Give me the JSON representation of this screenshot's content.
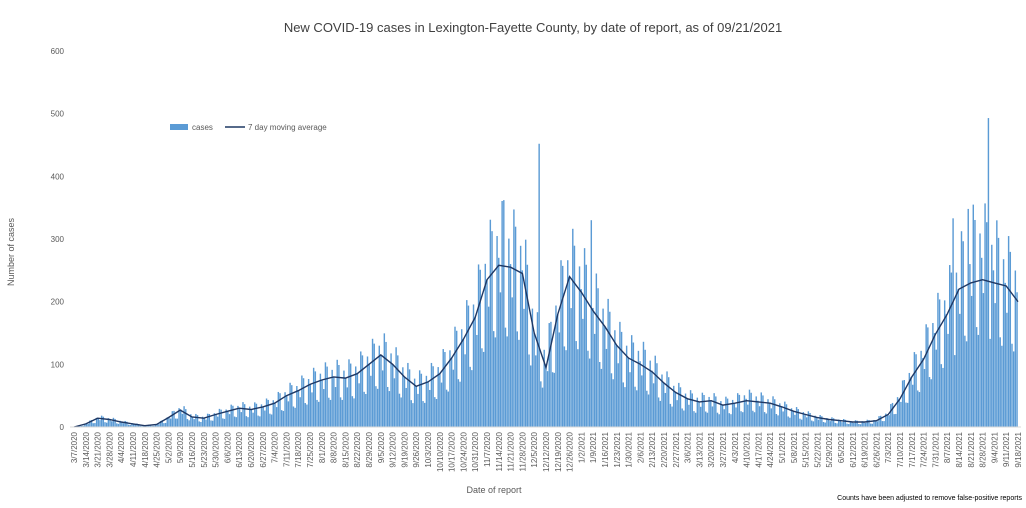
{
  "chart_data": {
    "type": "bar",
    "title": "New COVID-19 cases in Lexington-Fayette County, by date of report, as of 09/21/2021",
    "xlabel": "Date of report",
    "ylabel": "Number of cases",
    "ylim": [
      0,
      600
    ],
    "yticks": [
      "0",
      "100",
      "200",
      "300",
      "400",
      "500",
      "600"
    ],
    "grid": false,
    "legend": {
      "placement": "top-left",
      "entries": [
        {
          "name": "cases",
          "kind": "bar",
          "color": "#5b9bd5"
        },
        {
          "name": "7 day moving average",
          "kind": "line",
          "color": "#1f3864"
        }
      ]
    },
    "footnote": "Counts have been adjusted to remove false-positive reports",
    "x_start": "3/7/2020",
    "x_end": "9/18/2021",
    "xtick_labels": [
      "3/7/2020",
      "3/14/2020",
      "3/21/2020",
      "3/28/2020",
      "4/4/2020",
      "4/11/2020",
      "4/18/2020",
      "4/25/2020",
      "5/2/2020",
      "5/9/2020",
      "5/16/2020",
      "5/23/2020",
      "5/30/2020",
      "6/6/2020",
      "6/13/2020",
      "6/20/2020",
      "6/27/2020",
      "7/4/2020",
      "7/11/2020",
      "7/18/2020",
      "7/25/2020",
      "8/1/2020",
      "8/8/2020",
      "8/15/2020",
      "8/22/2020",
      "8/29/2020",
      "9/5/2020",
      "9/12/2020",
      "9/19/2020",
      "9/26/2020",
      "10/3/2020",
      "10/10/2020",
      "10/17/2020",
      "10/24/2020",
      "10/31/2020",
      "11/7/2020",
      "11/14/2020",
      "11/21/2020",
      "11/28/2020",
      "12/5/2020",
      "12/12/2020",
      "12/19/2020",
      "12/26/2020",
      "1/2/2021",
      "1/9/2021",
      "1/16/2021",
      "1/23/2021",
      "1/30/2021",
      "2/6/2021",
      "2/13/2021",
      "2/20/2021",
      "2/27/2021",
      "3/6/2021",
      "3/13/2021",
      "3/20/2021",
      "3/27/2021",
      "4/3/2021",
      "4/10/2021",
      "4/17/2021",
      "4/24/2021",
      "5/1/2021",
      "5/8/2021",
      "5/15/2021",
      "5/22/2021",
      "5/29/2021",
      "6/5/2021",
      "6/12/2021",
      "6/19/2021",
      "6/26/2021",
      "7/3/2021",
      "7/10/2021",
      "7/17/2021",
      "7/24/2021",
      "7/31/2021",
      "8/7/2021",
      "8/14/2021",
      "8/21/2021",
      "8/28/2021",
      "9/4/2021",
      "9/11/2021",
      "9/18/2021"
    ],
    "weekly_cases": [
      0,
      5,
      14,
      12,
      8,
      5,
      2,
      4,
      15,
      28,
      16,
      14,
      20,
      25,
      30,
      28,
      32,
      38,
      50,
      58,
      68,
      75,
      80,
      78,
      85,
      100,
      115,
      100,
      80,
      65,
      72,
      85,
      110,
      140,
      175,
      235,
      270,
      260,
      250,
      150,
      100,
      180,
      240,
      220,
      190,
      160,
      130,
      110,
      105,
      90,
      70,
      55,
      45,
      40,
      42,
      35,
      38,
      45,
      42,
      38,
      32,
      25,
      20,
      15,
      12,
      10,
      8,
      8,
      10,
      20,
      45,
      80,
      110,
      150,
      180,
      220,
      260,
      270,
      250,
      230,
      215
    ],
    "weekly_moving_average": [
      0,
      5,
      14,
      12,
      8,
      5,
      2,
      4,
      15,
      27,
      16,
      14,
      20,
      25,
      30,
      28,
      32,
      38,
      50,
      58,
      68,
      75,
      80,
      78,
      85,
      100,
      115,
      100,
      80,
      65,
      72,
      85,
      110,
      140,
      175,
      235,
      258,
      255,
      245,
      150,
      95,
      180,
      240,
      215,
      185,
      160,
      130,
      110,
      100,
      88,
      70,
      55,
      45,
      40,
      42,
      35,
      38,
      42,
      40,
      38,
      32,
      25,
      20,
      15,
      12,
      10,
      8,
      8,
      10,
      20,
      45,
      80,
      108,
      148,
      180,
      220,
      230,
      235,
      230,
      225,
      200
    ],
    "peak_daily_values": [
      {
        "date": "12/8/2020",
        "value": 452
      },
      {
        "date": "9/1/2021",
        "value": 493
      },
      {
        "date": "11/17/2020",
        "value": 362
      },
      {
        "date": "8/20/2021",
        "value": 348
      },
      {
        "date": "1/8/2021",
        "value": 330
      },
      {
        "date": "8/11/2021",
        "value": 333
      }
    ]
  }
}
